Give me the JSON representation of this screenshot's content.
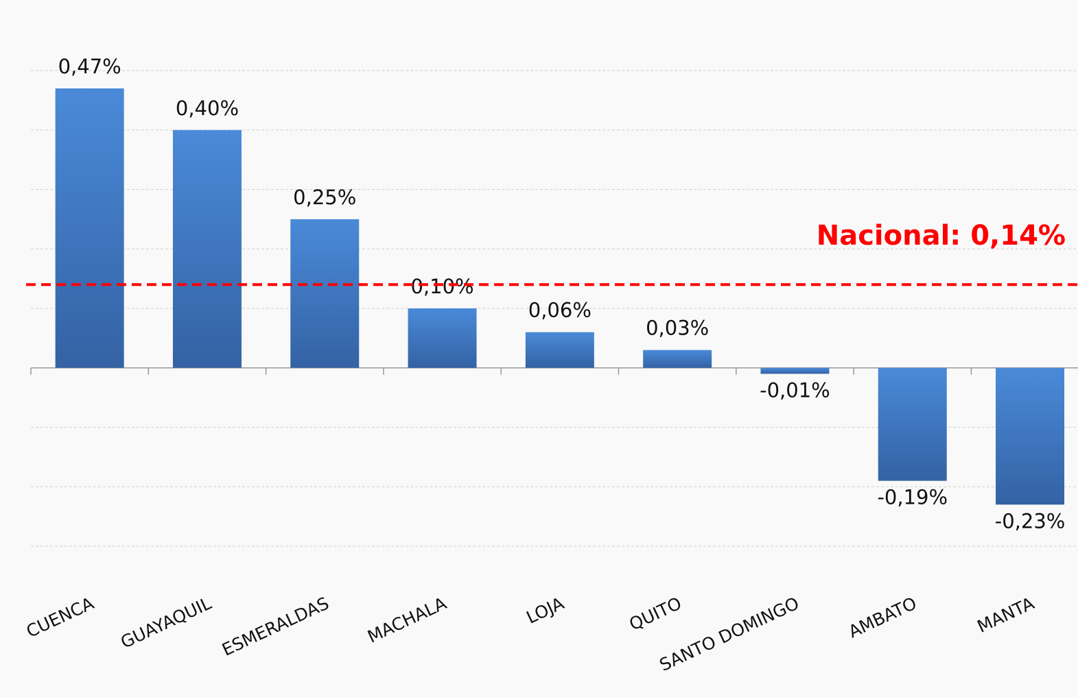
{
  "chart_data": {
    "type": "bar",
    "categories": [
      "CUENCA",
      "GUAYAQUIL",
      "ESMERALDAS",
      "MACHALA",
      "LOJA",
      "QUITO",
      "SANTO DOMINGO",
      "AMBATO",
      "MANTA"
    ],
    "values": [
      0.47,
      0.4,
      0.25,
      0.1,
      0.06,
      0.03,
      -0.01,
      -0.19,
      -0.23
    ],
    "value_labels": [
      "0,47%",
      "0,40%",
      "0,25%",
      "0,10%",
      "0,06%",
      "0,03%",
      "-0,01%",
      "-0,19%",
      "-0,23%"
    ],
    "color": "#4a8ad8",
    "ylim": [
      -0.3,
      0.5
    ],
    "yticks": [
      -0.3,
      -0.2,
      -0.1,
      0,
      0.1,
      0.2,
      0.3,
      0.4,
      0.5
    ],
    "grid": true,
    "reference": {
      "value": 0.14,
      "label": "Nacional: 0,14%",
      "color": "#ff0000"
    }
  }
}
